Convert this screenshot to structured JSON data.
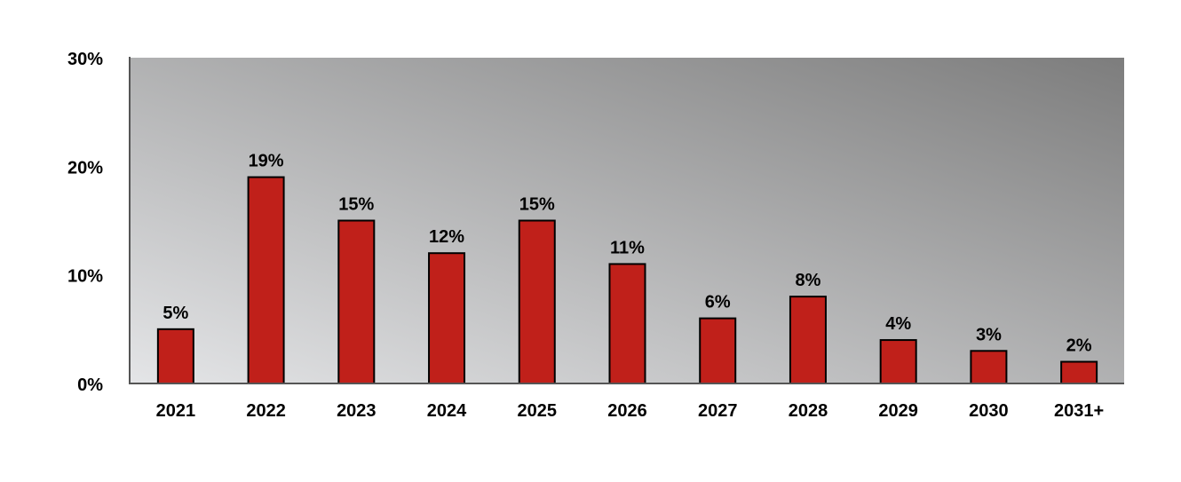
{
  "chart_data": {
    "type": "bar",
    "categories": [
      "2021",
      "2022",
      "2023",
      "2024",
      "2025",
      "2026",
      "2027",
      "2028",
      "2029",
      "2030",
      "2031+"
    ],
    "values": [
      5,
      19,
      15,
      12,
      15,
      11,
      6,
      8,
      4,
      3,
      2
    ],
    "data_labels": [
      "5%",
      "19%",
      "15%",
      "12%",
      "15%",
      "11%",
      "6%",
      "8%",
      "4%",
      "3%",
      "2%"
    ],
    "y_ticks": [
      0,
      10,
      20,
      30
    ],
    "y_tick_labels": [
      "0%",
      "10%",
      "20%",
      "30%"
    ],
    "ylim": [
      0,
      30
    ],
    "grid": false,
    "legend": "none",
    "title": "",
    "xlabel": "",
    "ylabel": ""
  },
  "colors": {
    "bar_fill": "#c0201a",
    "bar_stroke": "#000000",
    "plot_gradient_light": "#e4e5e7",
    "plot_gradient_dark": "#7d7d7d",
    "axis": "#555555"
  }
}
